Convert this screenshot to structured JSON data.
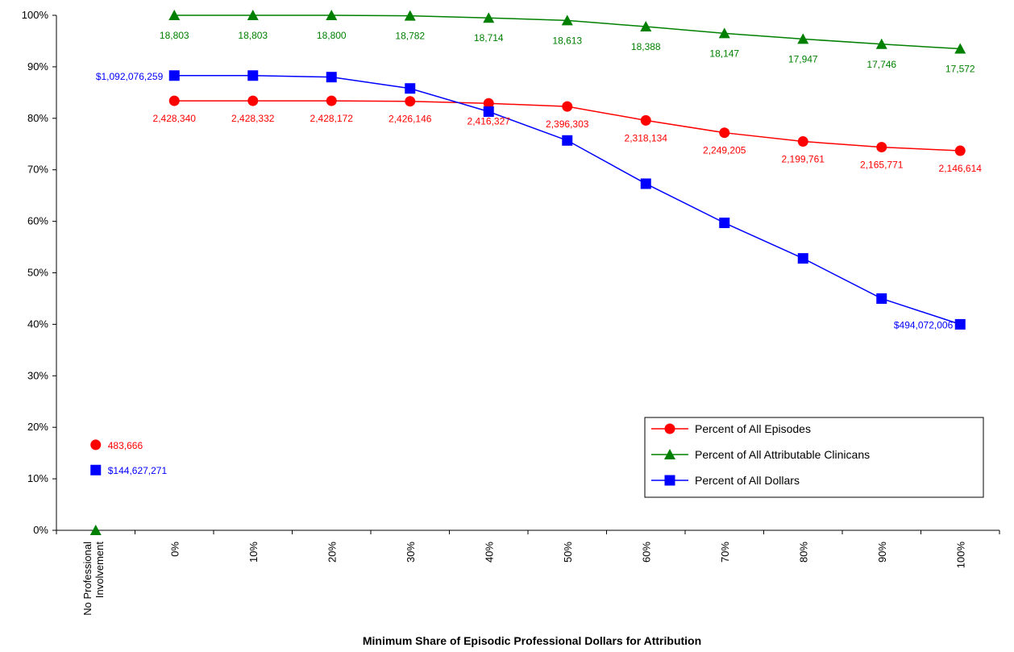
{
  "chart_data": {
    "type": "line",
    "title": "",
    "xlabel": "Minimum Share of Episodic Professional Dollars for Attribution",
    "ylabel": "",
    "ylim": [
      0,
      100
    ],
    "y_ticks": [
      "0%",
      "10%",
      "20%",
      "30%",
      "40%",
      "50%",
      "60%",
      "70%",
      "80%",
      "90%",
      "100%"
    ],
    "categories": [
      "No Professional Involvement",
      "0%",
      "10%",
      "20%",
      "30%",
      "40%",
      "50%",
      "60%",
      "70%",
      "80%",
      "90%",
      "100%"
    ],
    "grid": false,
    "legend_position": "bottom-right",
    "series": [
      {
        "name": "Percent of All Episodes",
        "color": "#ff0000",
        "marker": "circle",
        "values": [
          16.6,
          83.4,
          83.4,
          83.4,
          83.3,
          82.9,
          82.3,
          79.6,
          77.2,
          75.5,
          74.4,
          73.7
        ],
        "labels": [
          "483,666",
          "2,428,340",
          "2,428,332",
          "2,428,172",
          "2,426,146",
          "2,416,327",
          "2,396,303",
          "2,318,134",
          "2,249,205",
          "2,199,761",
          "2,165,771",
          "2,146,614"
        ]
      },
      {
        "name": "Percent of All Attributable Clinicans",
        "color": "#008000",
        "marker": "triangle",
        "values": [
          0,
          100,
          100,
          100,
          99.9,
          99.5,
          99.0,
          97.8,
          96.5,
          95.4,
          94.4,
          93.5
        ],
        "labels": [
          "",
          "18,803",
          "18,803",
          "18,800",
          "18,782",
          "18,714",
          "18,613",
          "18,388",
          "18,147",
          "17,947",
          "17,746",
          "17,572"
        ]
      },
      {
        "name": "Percent of All Dollars",
        "color": "#0000ff",
        "marker": "square",
        "values": [
          11.7,
          88.3,
          88.3,
          88.0,
          85.8,
          81.3,
          75.7,
          67.3,
          59.7,
          52.8,
          45.0,
          40.0
        ],
        "labels": [
          "$144,627,271",
          "$1,092,076,259",
          "",
          "",
          "",
          "",
          "",
          "",
          "",
          "",
          "",
          "$494,072,006"
        ]
      }
    ]
  }
}
